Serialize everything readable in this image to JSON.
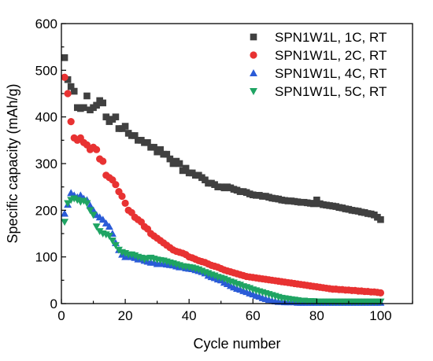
{
  "chart_data": {
    "type": "scatter",
    "title": "",
    "xlabel": "Cycle number",
    "ylabel": "Specific capacity (mAh/g)",
    "xlim": [
      0,
      110
    ],
    "ylim": [
      0,
      600
    ],
    "x_ticks": [
      0,
      20,
      40,
      60,
      80,
      100
    ],
    "y_ticks": [
      0,
      100,
      200,
      300,
      400,
      500,
      600
    ],
    "grid": false,
    "legend_position": "top-right",
    "series": [
      {
        "name": "SPN1W1L, 1C, RT",
        "color": "#404040",
        "marker": "square",
        "x": [
          1,
          2,
          3,
          4,
          5,
          6,
          7,
          8,
          9,
          10,
          11,
          12,
          13,
          14,
          15,
          16,
          17,
          18,
          19,
          20,
          21,
          22,
          23,
          24,
          25,
          26,
          27,
          28,
          29,
          30,
          31,
          32,
          33,
          34,
          35,
          36,
          37,
          38,
          39,
          40,
          41,
          42,
          43,
          44,
          45,
          46,
          47,
          48,
          49,
          50,
          51,
          52,
          53,
          54,
          55,
          56,
          57,
          58,
          59,
          60,
          61,
          62,
          63,
          64,
          65,
          66,
          67,
          68,
          69,
          70,
          71,
          72,
          73,
          74,
          75,
          76,
          77,
          78,
          79,
          80,
          81,
          82,
          83,
          84,
          85,
          86,
          87,
          88,
          89,
          90,
          91,
          92,
          93,
          94,
          95,
          96,
          97,
          98,
          99,
          100
        ],
        "y": [
          527,
          480,
          465,
          455,
          420,
          418,
          420,
          445,
          415,
          420,
          425,
          435,
          430,
          400,
          390,
          395,
          400,
          375,
          375,
          380,
          365,
          360,
          360,
          350,
          350,
          345,
          345,
          335,
          335,
          325,
          330,
          320,
          320,
          310,
          300,
          305,
          300,
          285,
          290,
          280,
          280,
          275,
          275,
          270,
          265,
          258,
          258,
          255,
          250,
          250,
          248,
          250,
          248,
          245,
          243,
          240,
          240,
          238,
          235,
          233,
          232,
          232,
          230,
          230,
          228,
          226,
          225,
          224,
          222,
          221,
          220,
          220,
          219,
          218,
          217,
          217,
          216,
          215,
          214,
          222,
          214,
          212,
          211,
          210,
          209,
          208,
          206,
          205,
          203,
          202,
          200,
          199,
          198,
          196,
          195,
          193,
          192,
          190,
          185,
          180
        ]
      },
      {
        "name": "SPN1W1L, 2C, RT",
        "color": "#e83232",
        "marker": "circle",
        "x": [
          1,
          2,
          3,
          4,
          5,
          6,
          7,
          8,
          9,
          10,
          11,
          12,
          13,
          14,
          15,
          16,
          17,
          18,
          19,
          20,
          21,
          22,
          23,
          24,
          25,
          26,
          27,
          28,
          29,
          30,
          31,
          32,
          33,
          34,
          35,
          36,
          37,
          38,
          39,
          40,
          41,
          42,
          43,
          44,
          45,
          46,
          47,
          48,
          49,
          50,
          51,
          52,
          53,
          54,
          55,
          56,
          57,
          58,
          59,
          60,
          61,
          62,
          63,
          64,
          65,
          66,
          67,
          68,
          69,
          70,
          71,
          72,
          73,
          74,
          75,
          76,
          77,
          78,
          79,
          80,
          81,
          82,
          83,
          84,
          85,
          86,
          87,
          88,
          89,
          90,
          91,
          92,
          93,
          94,
          95,
          96,
          97,
          98,
          99,
          100
        ],
        "y": [
          485,
          450,
          390,
          355,
          350,
          355,
          345,
          340,
          330,
          335,
          330,
          310,
          305,
          275,
          270,
          265,
          255,
          240,
          230,
          215,
          200,
          195,
          185,
          180,
          175,
          165,
          160,
          150,
          145,
          140,
          135,
          130,
          125,
          120,
          115,
          112,
          110,
          108,
          105,
          100,
          98,
          95,
          92,
          90,
          88,
          85,
          82,
          80,
          78,
          75,
          72,
          70,
          68,
          66,
          64,
          62,
          60,
          58,
          57,
          56,
          55,
          54,
          53,
          52,
          51,
          50,
          49,
          48,
          47,
          46,
          45,
          44,
          43,
          42,
          41,
          40,
          39,
          38,
          37,
          36,
          35,
          34,
          33,
          32,
          31,
          31,
          30,
          30,
          29,
          29,
          28,
          28,
          27,
          27,
          26,
          26,
          25,
          25,
          24,
          23
        ]
      },
      {
        "name": "SPN1W1L, 4C, RT",
        "color": "#2a5bd7",
        "marker": "triangle-up",
        "x": [
          1,
          2,
          3,
          4,
          5,
          6,
          7,
          8,
          9,
          10,
          11,
          12,
          13,
          14,
          15,
          16,
          17,
          18,
          19,
          20,
          21,
          22,
          23,
          24,
          25,
          26,
          27,
          28,
          29,
          30,
          31,
          32,
          33,
          34,
          35,
          36,
          37,
          38,
          39,
          40,
          41,
          42,
          43,
          44,
          45,
          46,
          47,
          48,
          49,
          50,
          51,
          52,
          53,
          54,
          55,
          56,
          57,
          58,
          59,
          60,
          61,
          62,
          63,
          64,
          65,
          66,
          67,
          68,
          69,
          70,
          71,
          72,
          73,
          74,
          75,
          76,
          77,
          78,
          79,
          80,
          81,
          82,
          83,
          84,
          85,
          86,
          87,
          88,
          89,
          90,
          91,
          92,
          93,
          94,
          95,
          96,
          97,
          98,
          99,
          100
        ],
        "y": [
          193,
          212,
          237,
          232,
          228,
          232,
          225,
          222,
          210,
          200,
          190,
          185,
          180,
          172,
          165,
          150,
          130,
          115,
          105,
          100,
          102,
          100,
          98,
          95,
          95,
          92,
          90,
          88,
          88,
          85,
          86,
          85,
          84,
          83,
          82,
          80,
          78,
          78,
          76,
          75,
          74,
          72,
          70,
          68,
          65,
          60,
          57,
          55,
          52,
          50,
          45,
          42,
          38,
          35,
          32,
          30,
          27,
          25,
          22,
          20,
          17,
          15,
          12,
          10,
          8,
          6,
          5,
          4,
          4,
          3,
          3,
          3,
          3,
          2,
          2,
          2,
          2,
          2,
          2,
          2,
          2,
          2,
          2,
          2,
          2,
          2,
          2,
          2,
          2,
          2,
          2,
          2,
          2,
          2,
          2,
          2,
          2,
          2,
          2,
          2
        ]
      },
      {
        "name": "SPN1W1L, 5C, RT",
        "color": "#1fa463",
        "marker": "triangle-down",
        "x": [
          1,
          2,
          3,
          4,
          5,
          6,
          7,
          8,
          9,
          10,
          11,
          12,
          13,
          14,
          15,
          16,
          17,
          18,
          19,
          20,
          21,
          22,
          23,
          24,
          25,
          26,
          27,
          28,
          29,
          30,
          31,
          32,
          33,
          34,
          35,
          36,
          37,
          38,
          39,
          40,
          41,
          42,
          43,
          44,
          45,
          46,
          47,
          48,
          49,
          50,
          51,
          52,
          53,
          54,
          55,
          56,
          57,
          58,
          59,
          60,
          61,
          62,
          63,
          64,
          65,
          66,
          67,
          68,
          69,
          70,
          71,
          72,
          73,
          74,
          75,
          76,
          77,
          78,
          79,
          80,
          81,
          82,
          83,
          84,
          85,
          86,
          87,
          88,
          89,
          90,
          91,
          92,
          93,
          94,
          95,
          96,
          97,
          98,
          99,
          100
        ],
        "y": [
          175,
          215,
          222,
          225,
          222,
          218,
          220,
          215,
          200,
          190,
          165,
          155,
          150,
          148,
          145,
          135,
          125,
          115,
          110,
          108,
          105,
          105,
          103,
          100,
          98,
          95,
          97,
          98,
          96,
          94,
          93,
          92,
          90,
          88,
          86,
          84,
          82,
          80,
          79,
          78,
          77,
          75,
          73,
          70,
          67,
          65,
          62,
          60,
          57,
          55,
          53,
          50,
          47,
          45,
          42,
          40,
          37,
          35,
          33,
          30,
          28,
          26,
          24,
          22,
          20,
          18,
          16,
          14,
          12,
          11,
          10,
          9,
          8,
          7,
          6,
          6,
          5,
          5,
          5,
          4,
          4,
          4,
          4,
          4,
          4,
          4,
          4,
          4,
          4,
          4,
          4,
          4,
          4,
          4,
          4,
          4,
          4,
          4,
          4,
          4
        ]
      }
    ]
  }
}
